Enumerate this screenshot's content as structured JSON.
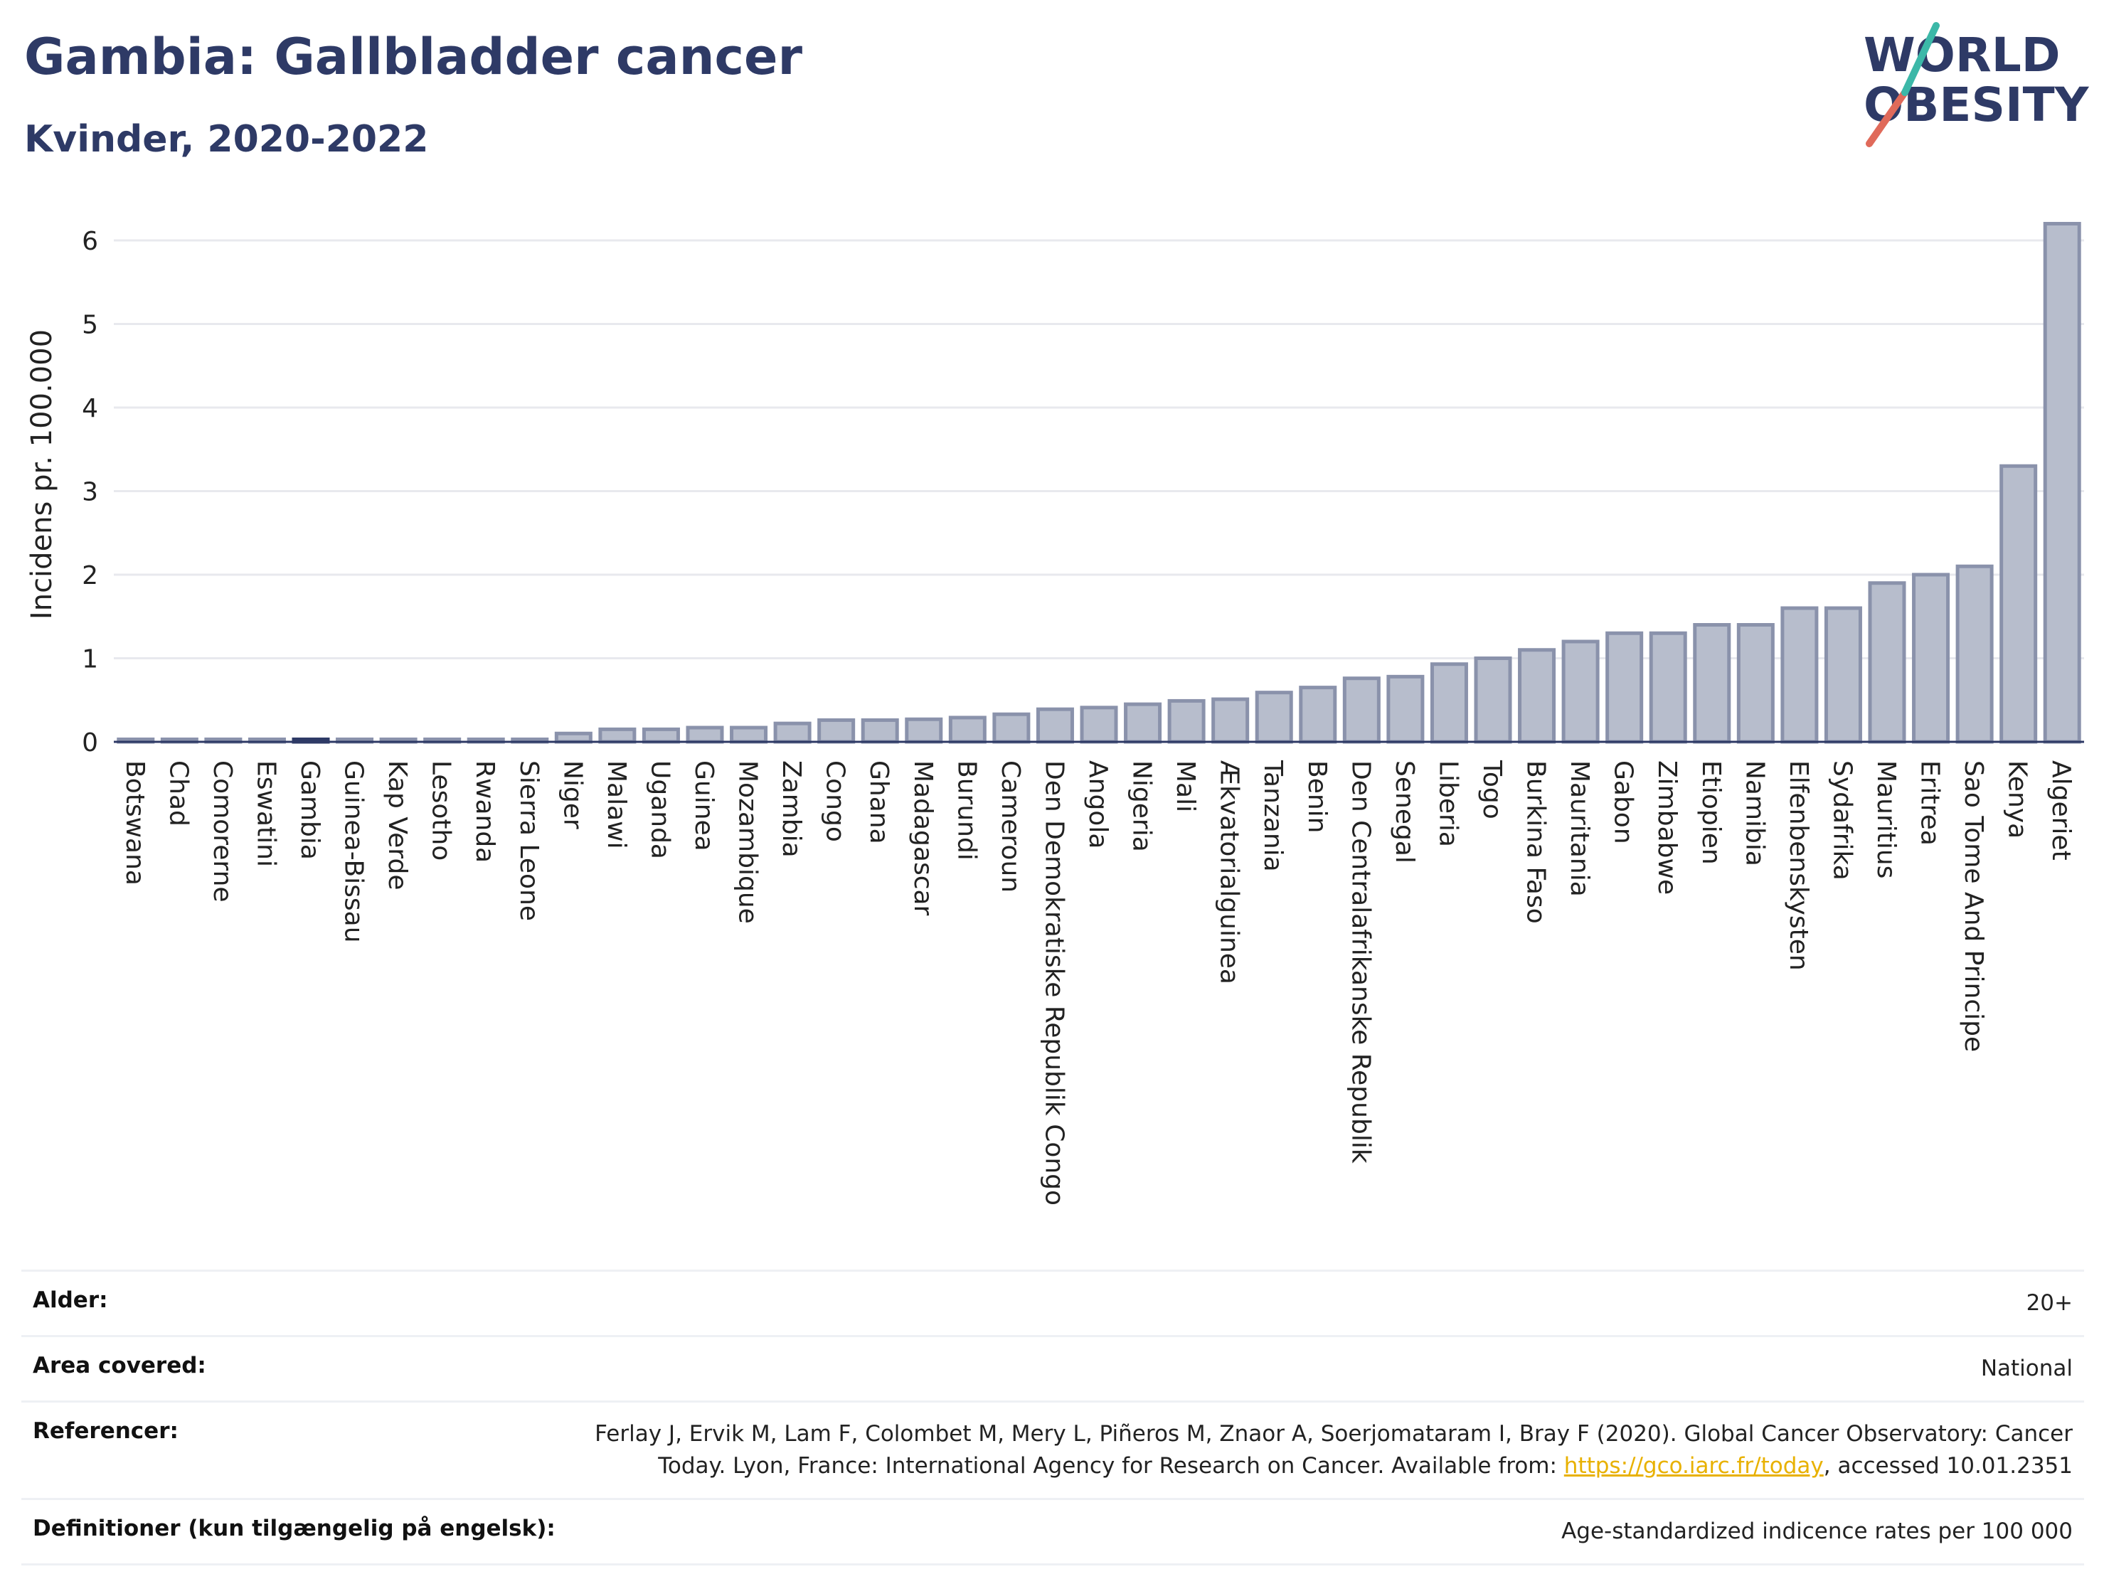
{
  "header": {
    "title": "Gambia: Gallbladder cancer",
    "subtitle": "Kvinder, 2020-2022"
  },
  "logo": {
    "line1": "WORLD",
    "line2": "OBESITY"
  },
  "colors": {
    "bar": "#b7bdcc",
    "bar_stroke": "#8a92ab",
    "highlight": "#2e3a66",
    "accent_teal": "#3cb8a8",
    "accent_red": "#e06a5a",
    "gridline": "#e8e9ee"
  },
  "chart_data": {
    "type": "bar",
    "title": "Gambia: Gallbladder cancer",
    "subtitle": "Kvinder, 2020-2022",
    "ylabel": "Incidens pr. 100.000",
    "xlabel": "",
    "ylim": [
      0,
      6.5
    ],
    "yticks": [
      0,
      1,
      2,
      3,
      4,
      5,
      6
    ],
    "highlight": "Gambia",
    "grid": true,
    "categories": [
      "Botswana",
      "Chad",
      "Comorerne",
      "Eswatini",
      "Gambia",
      "Guinea-Bissau",
      "Kap Verde",
      "Lesotho",
      "Rwanda",
      "Sierra Leone",
      "Niger",
      "Malawi",
      "Uganda",
      "Guinea",
      "Mozambique",
      "Zambia",
      "Congo",
      "Ghana",
      "Madagascar",
      "Burundi",
      "Cameroun",
      "Den Demokratiske Republik Congo",
      "Angola",
      "Nigeria",
      "Mali",
      "Ækvatorialguinea",
      "Tanzania",
      "Benin",
      "Den Centralafrikanske Republik",
      "Senegal",
      "Liberia",
      "Togo",
      "Burkina Faso",
      "Mauritania",
      "Gabon",
      "Zimbabwe",
      "Etiopien",
      "Namibia",
      "Elfenbenskysten",
      "Sydafrika",
      "Mauritius",
      "Eritrea",
      "Sao Tome And Principe",
      "Kenya",
      "Algeriet"
    ],
    "values": [
      0.03,
      0.03,
      0.03,
      0.03,
      0.03,
      0.03,
      0.03,
      0.03,
      0.03,
      0.03,
      0.1,
      0.15,
      0.15,
      0.17,
      0.17,
      0.22,
      0.26,
      0.26,
      0.27,
      0.29,
      0.33,
      0.39,
      0.41,
      0.45,
      0.49,
      0.51,
      0.59,
      0.65,
      0.76,
      0.78,
      0.93,
      1.0,
      1.1,
      1.2,
      1.3,
      1.3,
      1.4,
      1.4,
      1.6,
      1.6,
      1.9,
      2.0,
      2.1,
      3.3,
      6.2
    ]
  },
  "meta": {
    "rows": [
      {
        "label": "Alder:",
        "value": "20+"
      },
      {
        "label": "Area covered:",
        "value": "National"
      },
      {
        "label": "Referencer:",
        "value_pre": "Ferlay J, Ervik M, Lam F, Colombet M, Mery L, Piñeros M, Znaor A, Soerjomataram I, Bray F (2020). Global Cancer Observatory: Cancer Today. Lyon, France: International Agency for Research on Cancer. Available from: ",
        "link": "https://gco.iarc.fr/today",
        "value_post": ", accessed 10.01.2351"
      },
      {
        "label": "Definitioner (kun tilgængelig på engelsk):",
        "value": "Age-standardized indicence rates per 100 000"
      }
    ]
  }
}
